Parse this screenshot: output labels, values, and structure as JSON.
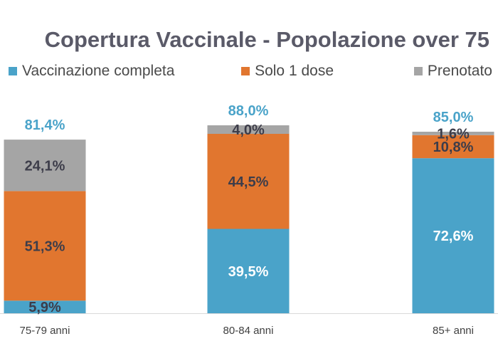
{
  "chart_data": {
    "type": "bar",
    "stacked": true,
    "title": "Copertura Vaccinale - Popolazione over 75",
    "categories": [
      "75-79 anni",
      "80-84 anni",
      "85+ anni"
    ],
    "series": [
      {
        "name": "Vaccinazione completa",
        "color": "#4aa3c9",
        "values": [
          5.9,
          39.5,
          72.6
        ],
        "labels": [
          "5,9%",
          "39,5%",
          "72,6%"
        ]
      },
      {
        "name": "Solo 1 dose",
        "color": "#e1762f",
        "values": [
          51.3,
          44.5,
          10.8
        ],
        "labels": [
          "51,3%",
          "44,5%",
          "10,8%"
        ]
      },
      {
        "name": "Prenotato",
        "color": "#a5a5a5",
        "values": [
          24.1,
          4.0,
          1.6
        ],
        "labels": [
          "24,1%",
          "4,0%",
          "1,6%"
        ]
      }
    ],
    "totals": [
      81.4,
      88.0,
      85.0
    ],
    "total_labels": [
      "81,4%",
      "88,0%",
      "85,0%"
    ],
    "total_color": "#4aa3c9",
    "segment_label_color": "#3d3d4a",
    "legend_position": "top",
    "ylim": [
      0,
      100
    ],
    "grid": false
  }
}
